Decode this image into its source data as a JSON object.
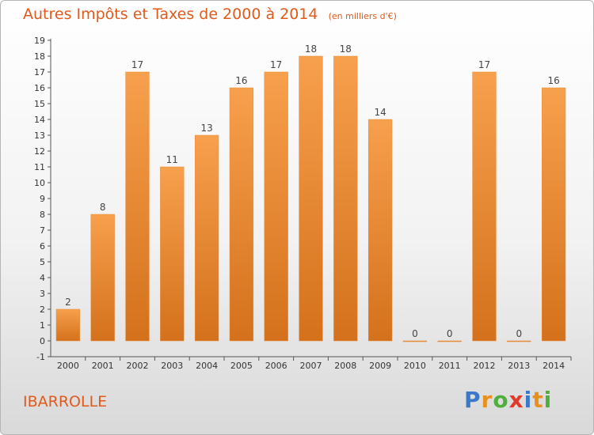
{
  "chart_data": {
    "type": "bar",
    "title": "Autres Impôts et Taxes de 2000 à 2014",
    "unit": "(en milliers d'€)",
    "categories": [
      "2000",
      "2001",
      "2002",
      "2003",
      "2004",
      "2005",
      "2006",
      "2007",
      "2008",
      "2009",
      "2010",
      "2011",
      "2012",
      "2013",
      "2014"
    ],
    "values": [
      2,
      8,
      17,
      11,
      13,
      16,
      17,
      18,
      18,
      14,
      0,
      0,
      17,
      0,
      16
    ],
    "ylim": [
      -1,
      19
    ],
    "yticks": [
      -1,
      0,
      1,
      2,
      3,
      4,
      5,
      6,
      7,
      8,
      9,
      10,
      11,
      12,
      13,
      14,
      15,
      16,
      17,
      18,
      19
    ],
    "grid": false,
    "legend": "none",
    "bar_color": "#f7a04d",
    "bar_color_dark": "#d4711c"
  },
  "commune": "IBARROLLE",
  "logo": {
    "letters": [
      {
        "ch": "P",
        "color": "#3a78c9"
      },
      {
        "ch": "r",
        "color": "#e8901e"
      },
      {
        "ch": "o",
        "color": "#4fae3c"
      },
      {
        "ch": "x",
        "color": "#e03a2a"
      },
      {
        "ch": "i",
        "color": "#3a78c9"
      },
      {
        "ch": "t",
        "color": "#e8901e"
      },
      {
        "ch": "i",
        "color": "#4fae3c"
      }
    ]
  }
}
